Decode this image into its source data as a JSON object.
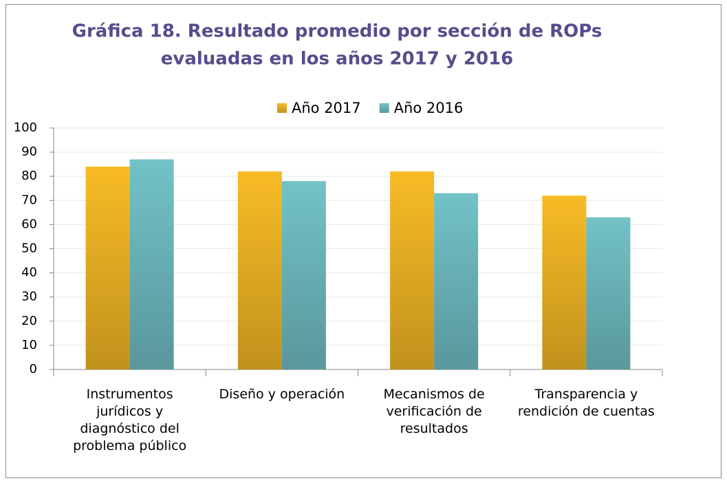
{
  "chart_data": {
    "type": "bar",
    "title": [
      "Gráfica 18. Resultado promedio por sección de ROPs",
      "evaluadas en los años 2017 y 2016"
    ],
    "categories": [
      "Instrumentos jurídicos y diagnóstico del problema público",
      "Diseño y operación",
      "Mecanismos de verificación de resultados",
      "Transparencia y rendición de cuentas"
    ],
    "series": [
      {
        "name": "Año 2017",
        "color": "#f7bb25",
        "values": [
          84,
          82,
          82,
          72
        ]
      },
      {
        "name": "Año 2016",
        "color": "#72c2c7",
        "values": [
          87,
          78,
          73,
          63
        ]
      }
    ],
    "ylim": [
      0,
      100
    ],
    "yticks": [
      0,
      10,
      20,
      30,
      40,
      50,
      60,
      70,
      80,
      90,
      100
    ],
    "grid": true,
    "legend": "top"
  }
}
